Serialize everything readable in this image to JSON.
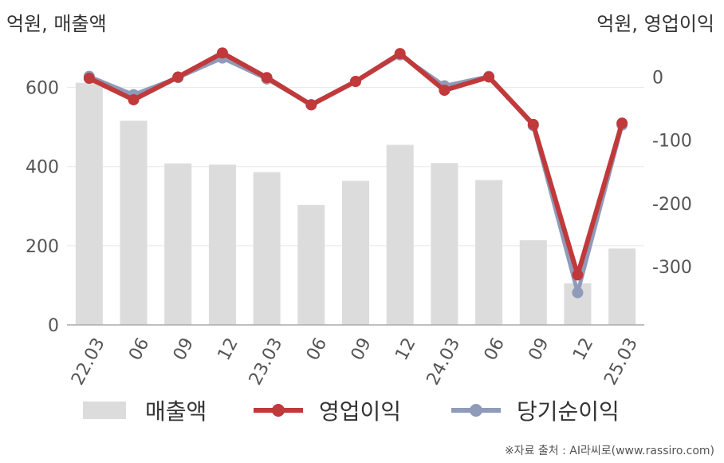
{
  "labels": {
    "unit_left": "억원, 매출액",
    "unit_right": "억원, 영업이익",
    "source": "※자료 출처 : AI라씨로(www.rassiro.com)"
  },
  "colors": {
    "revenue": "#dcdcdc",
    "operating_profit": "#c0393b",
    "net_income": "#8f9bb8",
    "axis": "#aaaaaa",
    "grid": "#e8e8e8"
  },
  "chart_data": {
    "type": "bar+line",
    "categories": [
      "22.03",
      "06",
      "09",
      "12",
      "23.03",
      "06",
      "09",
      "12",
      "24.03",
      "06",
      "09",
      "12",
      "25.03"
    ],
    "left_axis": {
      "ticks": [
        0,
        200,
        400,
        600
      ],
      "ylim": [
        0,
        700
      ]
    },
    "right_axis": {
      "ticks": [
        0,
        -100,
        -200,
        -300
      ],
      "ylim": [
        -392,
        46
      ]
    },
    "series": [
      {
        "name": "매출액",
        "type": "bar",
        "axis": "left",
        "values": [
          612,
          516,
          408,
          405,
          386,
          303,
          364,
          455,
          409,
          366,
          214,
          105,
          193
        ]
      },
      {
        "name": "영업이익",
        "type": "line",
        "axis": "right",
        "values": [
          -2,
          -36,
          0,
          38,
          -1,
          -44,
          -7,
          37,
          -21,
          0,
          -75,
          -313,
          -73
        ]
      },
      {
        "name": "당기순이익",
        "type": "line",
        "axis": "right",
        "values": [
          1,
          -28,
          -1,
          30,
          -3,
          -44,
          -7,
          35,
          -14,
          1,
          -77,
          -341,
          -76
        ]
      }
    ],
    "legend": [
      "매출액",
      "영업이익",
      "당기순이익"
    ],
    "legend_position": "bottom",
    "grid": true
  }
}
